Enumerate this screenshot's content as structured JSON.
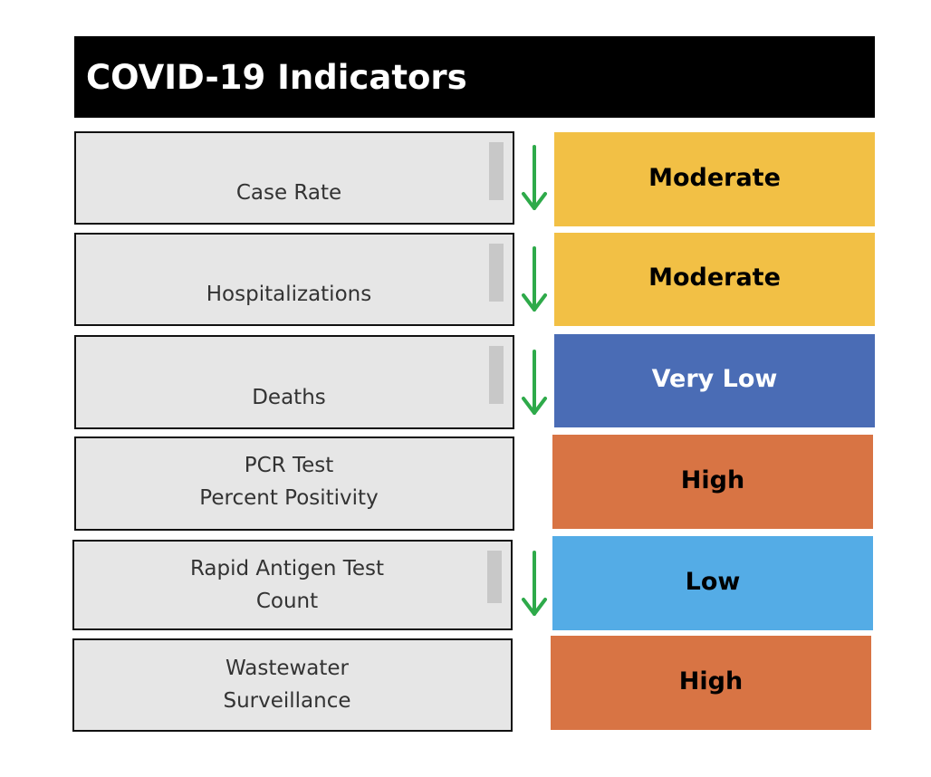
{
  "title": "COVID-19 Indicators",
  "colors": {
    "moderate": "#f2c045",
    "very_low": "#4a6cb5",
    "high": "#d87444",
    "low": "#54ace6",
    "arrow": "#2eaa4a"
  },
  "indicators": [
    {
      "label_lines": [
        "Case Rate"
      ],
      "trend_icon": "arrow-down-icon",
      "level": "Moderate",
      "level_color": "#f2c045",
      "level_text_color": "#000000"
    },
    {
      "label_lines": [
        "Hospitalizations"
      ],
      "trend_icon": "arrow-down-icon",
      "level": "Moderate",
      "level_color": "#f2c045",
      "level_text_color": "#000000"
    },
    {
      "label_lines": [
        "Deaths"
      ],
      "trend_icon": "arrow-down-icon",
      "level": "Very Low",
      "level_color": "#4a6cb5",
      "level_text_color": "#ffffff"
    },
    {
      "label_lines": [
        "PCR Test",
        "Percent Positivity"
      ],
      "trend_icon": null,
      "level": "High",
      "level_color": "#d87444",
      "level_text_color": "#000000"
    },
    {
      "label_lines": [
        "Rapid Antigen Test",
        "Count"
      ],
      "trend_icon": "arrow-down-icon",
      "level": "Low",
      "level_color": "#54ace6",
      "level_text_color": "#000000"
    },
    {
      "label_lines": [
        "Wastewater",
        "Surveillance"
      ],
      "trend_icon": null,
      "level": "High",
      "level_color": "#d87444",
      "level_text_color": "#000000"
    }
  ]
}
